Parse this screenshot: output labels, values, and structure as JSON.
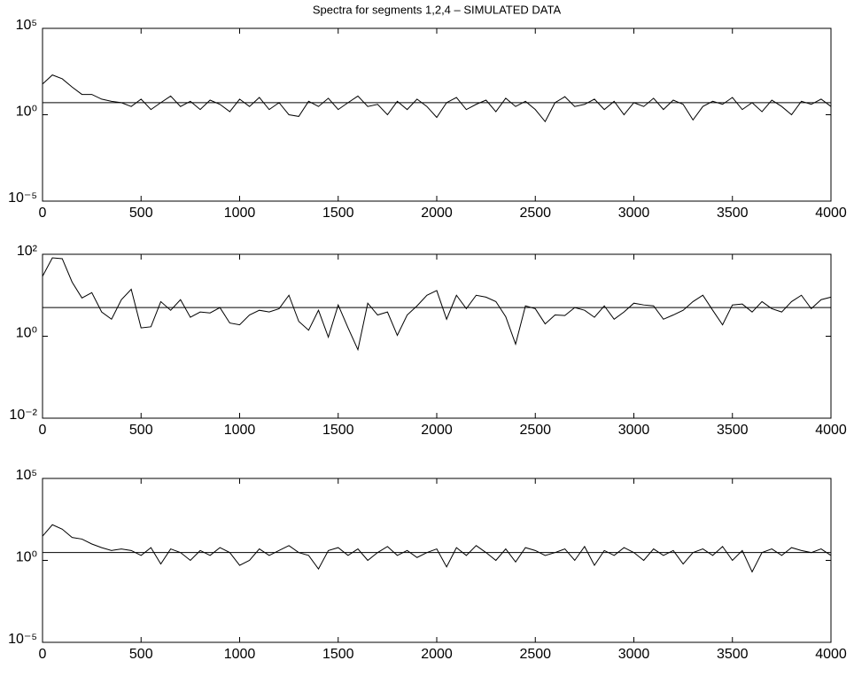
{
  "chart_data": [
    {
      "type": "line",
      "title": "Spectra for segments 1,2,4 – SIMULATED DATA",
      "ylog": true,
      "color": "#000000",
      "xlim": [
        0,
        4000
      ],
      "xticks": [
        0,
        500,
        1000,
        1500,
        2000,
        2500,
        3000,
        3500,
        4000
      ],
      "ylim": [
        1e-05,
        100000
      ],
      "yticks": [
        {
          "value": 1e-05,
          "label": "10⁻⁵"
        },
        {
          "value": 1,
          "label": "10⁰"
        },
        {
          "value": 100000,
          "label": "10⁵"
        }
      ],
      "reference_line": 5,
      "x": [
        0,
        50,
        100,
        150,
        200,
        250,
        300,
        350,
        400,
        450,
        500,
        550,
        600,
        650,
        700,
        750,
        800,
        850,
        900,
        950,
        1000,
        1050,
        1100,
        1150,
        1200,
        1250,
        1300,
        1350,
        1400,
        1450,
        1500,
        1550,
        1600,
        1650,
        1700,
        1750,
        1800,
        1850,
        1900,
        1950,
        2000,
        2050,
        2100,
        2150,
        2200,
        2250,
        2300,
        2350,
        2400,
        2450,
        2500,
        2550,
        2600,
        2650,
        2700,
        2750,
        2800,
        2850,
        2900,
        2950,
        3000,
        3050,
        3100,
        3150,
        3200,
        3250,
        3300,
        3350,
        3400,
        3450,
        3500,
        3550,
        3600,
        3650,
        3700,
        3750,
        3800,
        3850,
        3900,
        3950,
        4000
      ],
      "values": [
        60,
        200,
        120,
        40,
        15,
        15,
        8,
        6,
        5,
        3,
        8,
        2,
        5,
        12,
        3,
        6,
        2,
        7,
        4,
        1.5,
        8,
        3,
        10,
        2,
        5,
        1,
        0.8,
        6,
        3,
        9,
        2,
        5,
        12,
        3,
        4,
        1,
        6,
        2,
        8,
        3,
        0.7,
        5,
        10,
        2,
        4,
        7,
        1.5,
        9,
        3,
        6,
        2,
        0.4,
        5,
        11,
        3,
        4,
        8,
        2,
        6,
        1,
        5,
        3,
        9,
        2,
        7,
        4,
        0.5,
        3,
        6,
        4,
        10,
        2,
        5,
        1.5,
        7,
        3,
        1,
        6,
        4,
        8,
        3
      ]
    },
    {
      "type": "line",
      "ylog": true,
      "color": "#000000",
      "xlim": [
        0,
        4000
      ],
      "xticks": [
        0,
        500,
        1000,
        1500,
        2000,
        2500,
        3000,
        3500,
        4000
      ],
      "ylim": [
        0.01,
        100
      ],
      "yticks": [
        {
          "value": 0.01,
          "label": "10⁻²"
        },
        {
          "value": 1,
          "label": "10⁰"
        },
        {
          "value": 100,
          "label": "10²"
        }
      ],
      "reference_line": 5,
      "x": [
        0,
        50,
        100,
        150,
        200,
        250,
        300,
        350,
        400,
        450,
        500,
        550,
        600,
        650,
        700,
        750,
        800,
        850,
        900,
        950,
        1000,
        1050,
        1100,
        1150,
        1200,
        1250,
        1300,
        1350,
        1400,
        1450,
        1500,
        1550,
        1600,
        1650,
        1700,
        1750,
        1800,
        1850,
        1900,
        1950,
        2000,
        2050,
        2100,
        2150,
        2200,
        2250,
        2300,
        2350,
        2400,
        2450,
        2500,
        2550,
        2600,
        2650,
        2700,
        2750,
        2800,
        2850,
        2900,
        2950,
        3000,
        3050,
        3100,
        3150,
        3200,
        3250,
        3300,
        3350,
        3400,
        3450,
        3500,
        3550,
        3600,
        3650,
        3700,
        3750,
        3800,
        3850,
        3900,
        3950,
        4000
      ],
      "values": [
        29,
        82,
        78,
        21,
        8.6,
        11.6,
        3.9,
        2.6,
        7.8,
        14,
        1.6,
        1.7,
        7,
        4.3,
        7.8,
        2.9,
        3.9,
        3.7,
        5,
        2.1,
        1.9,
        3.3,
        4.3,
        3.9,
        4.7,
        10,
        2.3,
        1.4,
        4.3,
        0.95,
        5.8,
        1.6,
        0.47,
        6.4,
        3.3,
        3.9,
        1.05,
        3.3,
        5.5,
        10,
        13,
        2.6,
        10,
        4.7,
        10,
        9,
        7,
        3,
        0.64,
        5.5,
        4.7,
        2,
        3.3,
        3.2,
        5,
        4.3,
        2.9,
        5.5,
        2.6,
        3.9,
        6.4,
        5.8,
        5.5,
        2.6,
        3.3,
        4.3,
        7,
        10,
        4.3,
        1.9,
        5.8,
        6.1,
        3.9,
        7,
        4.7,
        3.9,
        7,
        10,
        4.7,
        7.8,
        9
      ]
    },
    {
      "type": "line",
      "ylog": true,
      "color": "#000000",
      "xlim": [
        0,
        4000
      ],
      "xticks": [
        0,
        500,
        1000,
        1500,
        2000,
        2500,
        3000,
        3500,
        4000
      ],
      "ylim": [
        1e-05,
        100000
      ],
      "yticks": [
        {
          "value": 1e-05,
          "label": "10⁻⁵"
        },
        {
          "value": 1,
          "label": "10⁰"
        },
        {
          "value": 100000,
          "label": "10⁵"
        }
      ],
      "reference_line": 3,
      "x": [
        0,
        50,
        100,
        150,
        200,
        250,
        300,
        350,
        400,
        450,
        500,
        550,
        600,
        650,
        700,
        750,
        800,
        850,
        900,
        950,
        1000,
        1050,
        1100,
        1150,
        1200,
        1250,
        1300,
        1350,
        1400,
        1450,
        1500,
        1550,
        1600,
        1650,
        1700,
        1750,
        1800,
        1850,
        1900,
        1950,
        2000,
        2050,
        2100,
        2150,
        2200,
        2250,
        2300,
        2350,
        2400,
        2450,
        2500,
        2550,
        2600,
        2650,
        2700,
        2750,
        2800,
        2850,
        2900,
        2950,
        3000,
        3050,
        3100,
        3150,
        3200,
        3250,
        3300,
        3350,
        3400,
        3450,
        3500,
        3550,
        3600,
        3650,
        3700,
        3750,
        3800,
        3850,
        3900,
        3950,
        4000
      ],
      "values": [
        30,
        150,
        80,
        25,
        20,
        10,
        6,
        4,
        5,
        4,
        2,
        6,
        0.6,
        5,
        3,
        1,
        4,
        2,
        6,
        3,
        0.5,
        1,
        5,
        2,
        4,
        8,
        3,
        2,
        0.3,
        4,
        6,
        2,
        5,
        1,
        3,
        7,
        2,
        4,
        1.5,
        3,
        5,
        0.4,
        6,
        2,
        8,
        3,
        1,
        5,
        0.8,
        6,
        4,
        2,
        3,
        5,
        1,
        7,
        0.5,
        4,
        2,
        6,
        3,
        1,
        5,
        2,
        4,
        0.6,
        3,
        5,
        2,
        7,
        1,
        4,
        0.2,
        3,
        5,
        2,
        6,
        4,
        3,
        5,
        2
      ]
    }
  ]
}
